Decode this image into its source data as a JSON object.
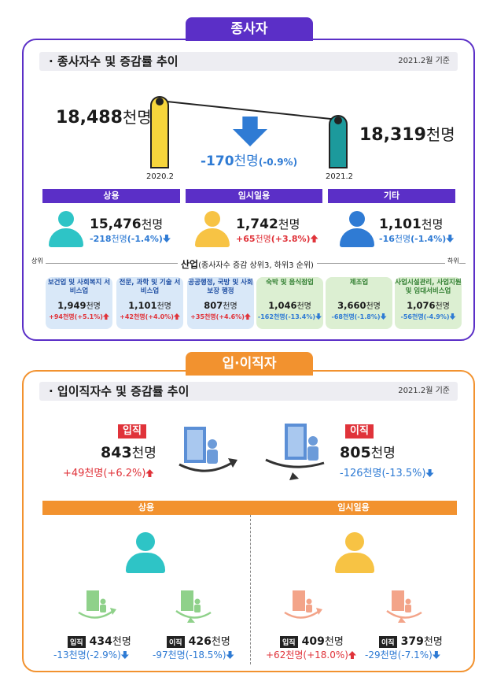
{
  "section1": {
    "tab": "종사자",
    "title": "· 종사자수 및 증감률 추이",
    "date": "2021.2월 기준",
    "left": {
      "value": "18,488",
      "unit": "천명",
      "label": "2020.2"
    },
    "right": {
      "value": "18,319",
      "unit": "천명",
      "label": "2021.2"
    },
    "change": {
      "value": "-170",
      "unit": "천명",
      "pct": "(-0.9%)"
    },
    "categories": [
      {
        "label": "상용",
        "value": "15,476",
        "unit": "천명",
        "change": "-218",
        "change_unit": "천명",
        "pct": "(-1.4%)",
        "dir": "down",
        "color": "#2ec4c6"
      },
      {
        "label": "임시일용",
        "value": "1,742",
        "unit": "천명",
        "change": "+65",
        "change_unit": "천명",
        "pct": "(+3.8%)",
        "dir": "up",
        "color": "#f7c344"
      },
      {
        "label": "기타",
        "value": "1,101",
        "unit": "천명",
        "change": "-16",
        "change_unit": "천명",
        "pct": "(-1.4%)",
        "dir": "down",
        "color": "#2f7bd4"
      }
    ],
    "industry_label": "산업",
    "industry_note": "(종사자수 증감 상위3, 하위3 순위)",
    "top_label": "상위",
    "bottom_label": "하위",
    "industries": [
      {
        "name": "보건업 및 사회복지 서비스업",
        "value": "1,949",
        "unit": "천명",
        "change": "+94천명(+5.1%)",
        "dir": "up",
        "kind": "blue"
      },
      {
        "name": "전문, 과학 및 기술 서비스업",
        "value": "1,101",
        "unit": "천명",
        "change": "+42천명(+4.0%)",
        "dir": "up",
        "kind": "blue"
      },
      {
        "name": "공공행정, 국방 및 사회보장 행정",
        "value": "807",
        "unit": "천명",
        "change": "+35천명(+4.6%)",
        "dir": "up",
        "kind": "blue"
      },
      {
        "name": "숙박 및 음식점업",
        "value": "1,046",
        "unit": "천명",
        "change": "-162천명(-13.4%)",
        "dir": "down",
        "kind": "green"
      },
      {
        "name": "제조업",
        "value": "3,660",
        "unit": "천명",
        "change": "-68천명(-1.8%)",
        "dir": "down",
        "kind": "green"
      },
      {
        "name": "사업시설관리, 사업지원 및 임대서비스업",
        "value": "1,076",
        "unit": "천명",
        "change": "-56천명(-4.9%)",
        "dir": "down",
        "kind": "green"
      }
    ],
    "colors": {
      "accent": "#5b2fc7",
      "bar_left": "#f7d63c",
      "bar_right": "#1c9a9c",
      "change_arrow": "#2f7bd4"
    }
  },
  "section2": {
    "tab": "입·이직자",
    "title": "· 입이직자수 및 증감률 추이",
    "date": "2021.2월 기준",
    "hire": {
      "tag": "입직",
      "value": "843",
      "unit": "천명",
      "change": "+49천명",
      "pct": "(+6.2%)",
      "dir": "up"
    },
    "sep": {
      "tag": "이직",
      "value": "805",
      "unit": "천명",
      "change": "-126천명",
      "pct": "(-13.5%)",
      "dir": "down"
    },
    "groups": [
      {
        "label": "상용",
        "color": "#2ec4c6",
        "items": [
          {
            "tag": "입직",
            "value": "434",
            "unit": "천명",
            "change": "-13천명",
            "pct": "(-2.9%)",
            "dir": "down"
          },
          {
            "tag": "이직",
            "value": "426",
            "unit": "천명",
            "change": "-97천명",
            "pct": "(-18.5%)",
            "dir": "down"
          }
        ]
      },
      {
        "label": "임시일용",
        "color": "#f7c344",
        "items": [
          {
            "tag": "입직",
            "value": "409",
            "unit": "천명",
            "change": "+62천명",
            "pct": "(+18.0%)",
            "dir": "up"
          },
          {
            "tag": "이직",
            "value": "379",
            "unit": "천명",
            "change": "-29천명",
            "pct": "(-7.1%)",
            "dir": "down"
          }
        ]
      }
    ],
    "colors": {
      "accent": "#f2922f",
      "hire_tag": "#e0333a",
      "sep_tag": "#e0333a",
      "green_icon": "#8fd18a",
      "salmon_icon": "#f3a489"
    }
  }
}
